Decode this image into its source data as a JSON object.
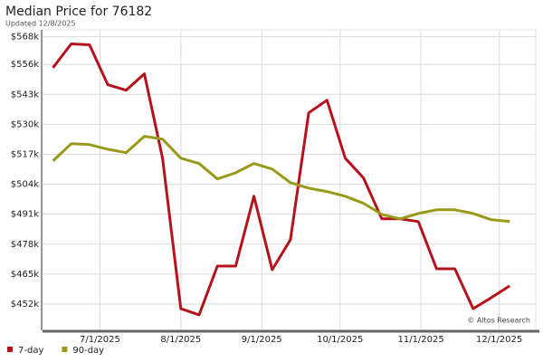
{
  "chart_data": {
    "type": "line",
    "title": "Median Price for 76182",
    "subtitle": "Updated 12/8/2025",
    "annotation": "© Altos Research",
    "x": [
      "2025-06-13",
      "2025-06-20",
      "2025-06-27",
      "2025-07-04",
      "2025-07-11",
      "2025-07-18",
      "2025-07-25",
      "2025-08-01",
      "2025-08-08",
      "2025-08-15",
      "2025-08-22",
      "2025-08-29",
      "2025-09-05",
      "2025-09-12",
      "2025-09-19",
      "2025-09-26",
      "2025-10-03",
      "2025-10-10",
      "2025-10-17",
      "2025-10-24",
      "2025-10-31",
      "2025-11-07",
      "2025-11-14",
      "2025-11-21",
      "2025-11-28",
      "2025-12-05"
    ],
    "series": [
      {
        "name": "7-day",
        "color": "#b5121b",
        "values": [
          554.6,
          564.9,
          564.5,
          547.2,
          544.8,
          551.9,
          515.3,
          450.0,
          447.3,
          468.5,
          468.5,
          498.8,
          466.9,
          479.9,
          535.0,
          540.5,
          515.3,
          506.7,
          489.0,
          489.0,
          487.8,
          467.3,
          467.3,
          450.0,
          454.8,
          459.9
        ]
      },
      {
        "name": "90-day",
        "color": "#9a9a1a",
        "values": [
          514.1,
          521.6,
          521.2,
          519.2,
          517.7,
          524.8,
          523.6,
          515.3,
          513.0,
          506.3,
          509.0,
          513.0,
          510.6,
          504.7,
          502.3,
          500.8,
          498.8,
          495.7,
          490.9,
          489.0,
          491.3,
          492.9,
          492.9,
          491.3,
          488.6,
          487.8
        ]
      }
    ],
    "xlim": [
      "2025-06-09",
      "2025-12-15"
    ],
    "xticks": [
      {
        "value": "2025-07-01",
        "label": "7/1/2025"
      },
      {
        "value": "2025-08-01",
        "label": "8/1/2025"
      },
      {
        "value": "2025-09-01",
        "label": "9/1/2025"
      },
      {
        "value": "2025-10-01",
        "label": "10/1/2025"
      },
      {
        "value": "2025-11-01",
        "label": "11/1/2025"
      },
      {
        "value": "2025-12-01",
        "label": "12/1/2025"
      }
    ],
    "ylim": [
      440.6,
      571
    ],
    "yticks": [
      {
        "value": 452,
        "label": "$452k"
      },
      {
        "value": 465,
        "label": "$465k"
      },
      {
        "value": 478,
        "label": "$478k"
      },
      {
        "value": 491,
        "label": "$491k"
      },
      {
        "value": 504,
        "label": "$504k"
      },
      {
        "value": 517,
        "label": "$517k"
      },
      {
        "value": 530,
        "label": "$530k"
      },
      {
        "value": 543,
        "label": "$543k"
      },
      {
        "value": 556,
        "label": "$556k"
      },
      {
        "value": 568,
        "label": "$568k"
      }
    ],
    "grid": true,
    "legend": "bottom-left"
  }
}
